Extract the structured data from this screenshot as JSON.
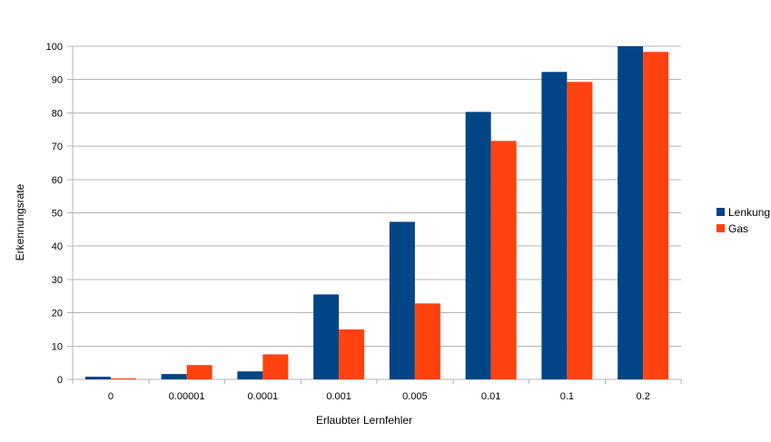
{
  "chart_data": {
    "type": "bar",
    "title": "",
    "xlabel": "Erlaubter Lernfehler",
    "ylabel": "Erkennungsrate",
    "categories": [
      "0",
      "0.00001",
      "0.0001",
      "0.001",
      "0.005",
      "0.01",
      "0.1",
      "0.2"
    ],
    "ylim": [
      0,
      100
    ],
    "yticks": [
      "0",
      "10",
      "20",
      "30",
      "40",
      "50",
      "60",
      "70",
      "80",
      "90",
      "100"
    ],
    "grid": true,
    "legend_position": "right",
    "series": [
      {
        "name": "Lenkung",
        "color": "#004586",
        "values": [
          0.8,
          1.6,
          2.4,
          25.5,
          47.3,
          80.3,
          92.3,
          100
        ]
      },
      {
        "name": "Gas",
        "color": "#ff420e",
        "values": [
          0.3,
          4.3,
          7.5,
          15,
          22.8,
          71.6,
          89.3,
          98.3
        ]
      }
    ]
  }
}
